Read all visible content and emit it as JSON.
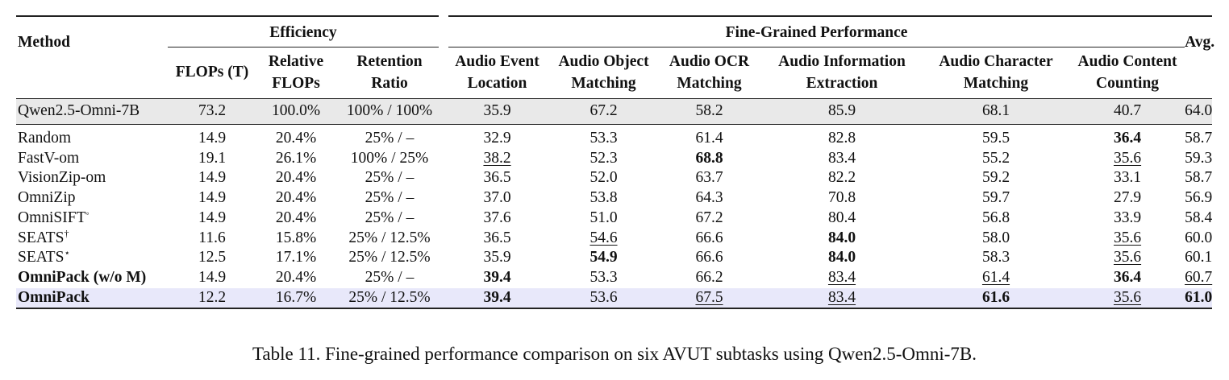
{
  "table": {
    "headers": {
      "method": "Method",
      "efficiency": "Efficiency",
      "fine_grained": "Fine-Grained Performance",
      "avg": "Avg.",
      "cols": [
        [
          "FLOPs (T)"
        ],
        [
          "Relative",
          "FLOPs"
        ],
        [
          "Retention",
          "Ratio"
        ],
        [
          "Audio Event",
          "Location"
        ],
        [
          "Audio Object",
          "Matching"
        ],
        [
          "Audio OCR",
          "Matching"
        ],
        [
          "Audio Information",
          "Extraction"
        ],
        [
          "Audio Character",
          "Matching"
        ],
        [
          "Audio Content",
          "Counting"
        ]
      ]
    },
    "baseline": {
      "method": "Qwen2.5-Omni-7B",
      "values": [
        "73.2",
        "100.0%",
        "100% / 100%",
        "35.9",
        "67.2",
        "58.2",
        "85.9",
        "68.1",
        "40.7",
        "64.0"
      ]
    },
    "rows": [
      {
        "method": "Random",
        "sup": "",
        "bold_method": false,
        "values": [
          "14.9",
          "20.4%",
          "25% / –",
          "32.9",
          "53.3",
          "61.4",
          "82.8",
          "59.5",
          "36.4",
          "58.7"
        ],
        "bold": [
          8
        ],
        "underline": []
      },
      {
        "method": "FastV-om",
        "sup": "",
        "bold_method": false,
        "values": [
          "19.1",
          "26.1%",
          "100% / 25%",
          "38.2",
          "52.3",
          "68.8",
          "83.4",
          "55.2",
          "35.6",
          "59.3"
        ],
        "bold": [
          5
        ],
        "underline": [
          3,
          8
        ]
      },
      {
        "method": "VisionZip-om",
        "sup": "",
        "bold_method": false,
        "values": [
          "14.9",
          "20.4%",
          "25% / –",
          "36.5",
          "52.0",
          "63.7",
          "82.2",
          "59.2",
          "33.1",
          "58.7"
        ],
        "bold": [],
        "underline": []
      },
      {
        "method": "OmniZip",
        "sup": "",
        "bold_method": false,
        "values": [
          "14.9",
          "20.4%",
          "25% / –",
          "37.0",
          "53.8",
          "64.3",
          "70.8",
          "59.7",
          "27.9",
          "56.9"
        ],
        "bold": [],
        "underline": []
      },
      {
        "method": "OmniSIFT",
        "sup": "◦",
        "bold_method": false,
        "values": [
          "14.9",
          "20.4%",
          "25% / –",
          "37.6",
          "51.0",
          "67.2",
          "80.4",
          "56.8",
          "33.9",
          "58.4"
        ],
        "bold": [],
        "underline": []
      },
      {
        "method": "SEATS",
        "sup": "†",
        "bold_method": false,
        "values": [
          "11.6",
          "15.8%",
          "25% / 12.5%",
          "36.5",
          "54.6",
          "66.6",
          "84.0",
          "58.0",
          "35.6",
          "60.0"
        ],
        "bold": [
          6
        ],
        "underline": [
          4,
          8
        ]
      },
      {
        "method": "SEATS",
        "sup": "⋆",
        "bold_method": false,
        "values": [
          "12.5",
          "17.1%",
          "25% / 12.5%",
          "35.9",
          "54.9",
          "66.6",
          "84.0",
          "58.3",
          "35.6",
          "60.1"
        ],
        "bold": [
          4,
          6
        ],
        "underline": [
          8
        ]
      },
      {
        "method": "OmniPack (w/o M)",
        "sup": "",
        "bold_method": true,
        "values": [
          "14.9",
          "20.4%",
          "25% / –",
          "39.4",
          "53.3",
          "66.2",
          "83.4",
          "61.4",
          "36.4",
          "60.7"
        ],
        "bold": [
          3,
          8
        ],
        "underline": [
          6,
          7,
          9
        ]
      },
      {
        "method": "OmniPack",
        "sup": "",
        "bold_method": true,
        "values": [
          "12.2",
          "16.7%",
          "25% / 12.5%",
          "39.4",
          "53.6",
          "67.5",
          "83.4",
          "61.6",
          "35.6",
          "61.0"
        ],
        "bold": [
          3,
          7,
          9
        ],
        "underline": [
          5,
          6,
          8
        ]
      }
    ]
  },
  "caption": "Table 11. Fine-grained performance comparison on six AVUT subtasks using Qwen2.5-Omni-7B.",
  "colors": {
    "baseline_row": "#e9e9e9",
    "highlight_row": "#e8e8fa"
  }
}
